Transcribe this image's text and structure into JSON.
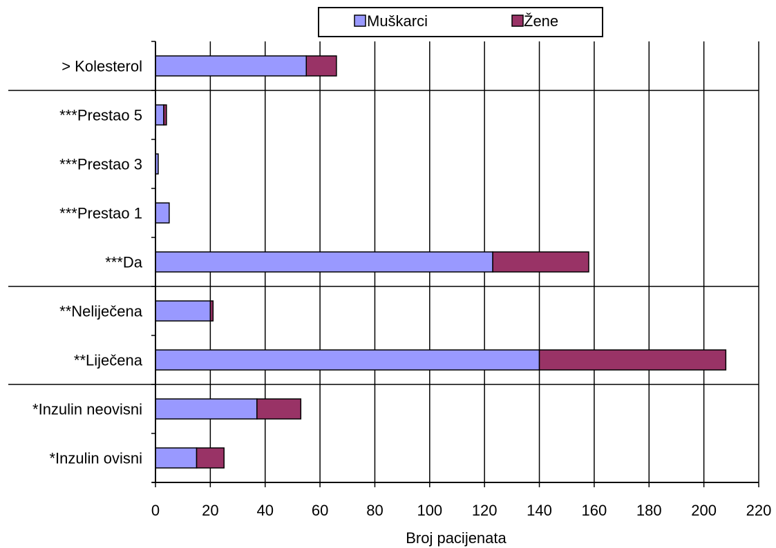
{
  "chart_data": {
    "type": "bar",
    "orientation": "horizontal",
    "stacked": true,
    "xlabel": "Broj pacijenata",
    "xlim": [
      0,
      220
    ],
    "xticks": [
      0,
      20,
      40,
      60,
      80,
      100,
      120,
      140,
      160,
      180,
      200,
      220
    ],
    "grid": "vertical",
    "legend_position": "top",
    "categories": [
      "> Kolesterol",
      "***Prestao 5",
      "***Prestao 3",
      "***Prestao 1",
      "***Da",
      "**Neliječena",
      "**Liječena",
      "*Inzulin neovisni",
      "*Inzulin ovisni"
    ],
    "group_separators_after": [
      0,
      4,
      6
    ],
    "series": [
      {
        "name": "Muškarci",
        "color": "#9999ff",
        "values": [
          55,
          3,
          1,
          5,
          123,
          20,
          140,
          37,
          15
        ]
      },
      {
        "name": "Žene",
        "color": "#993366",
        "values": [
          11,
          1,
          0,
          0,
          35,
          1,
          68,
          16,
          10
        ]
      }
    ]
  }
}
